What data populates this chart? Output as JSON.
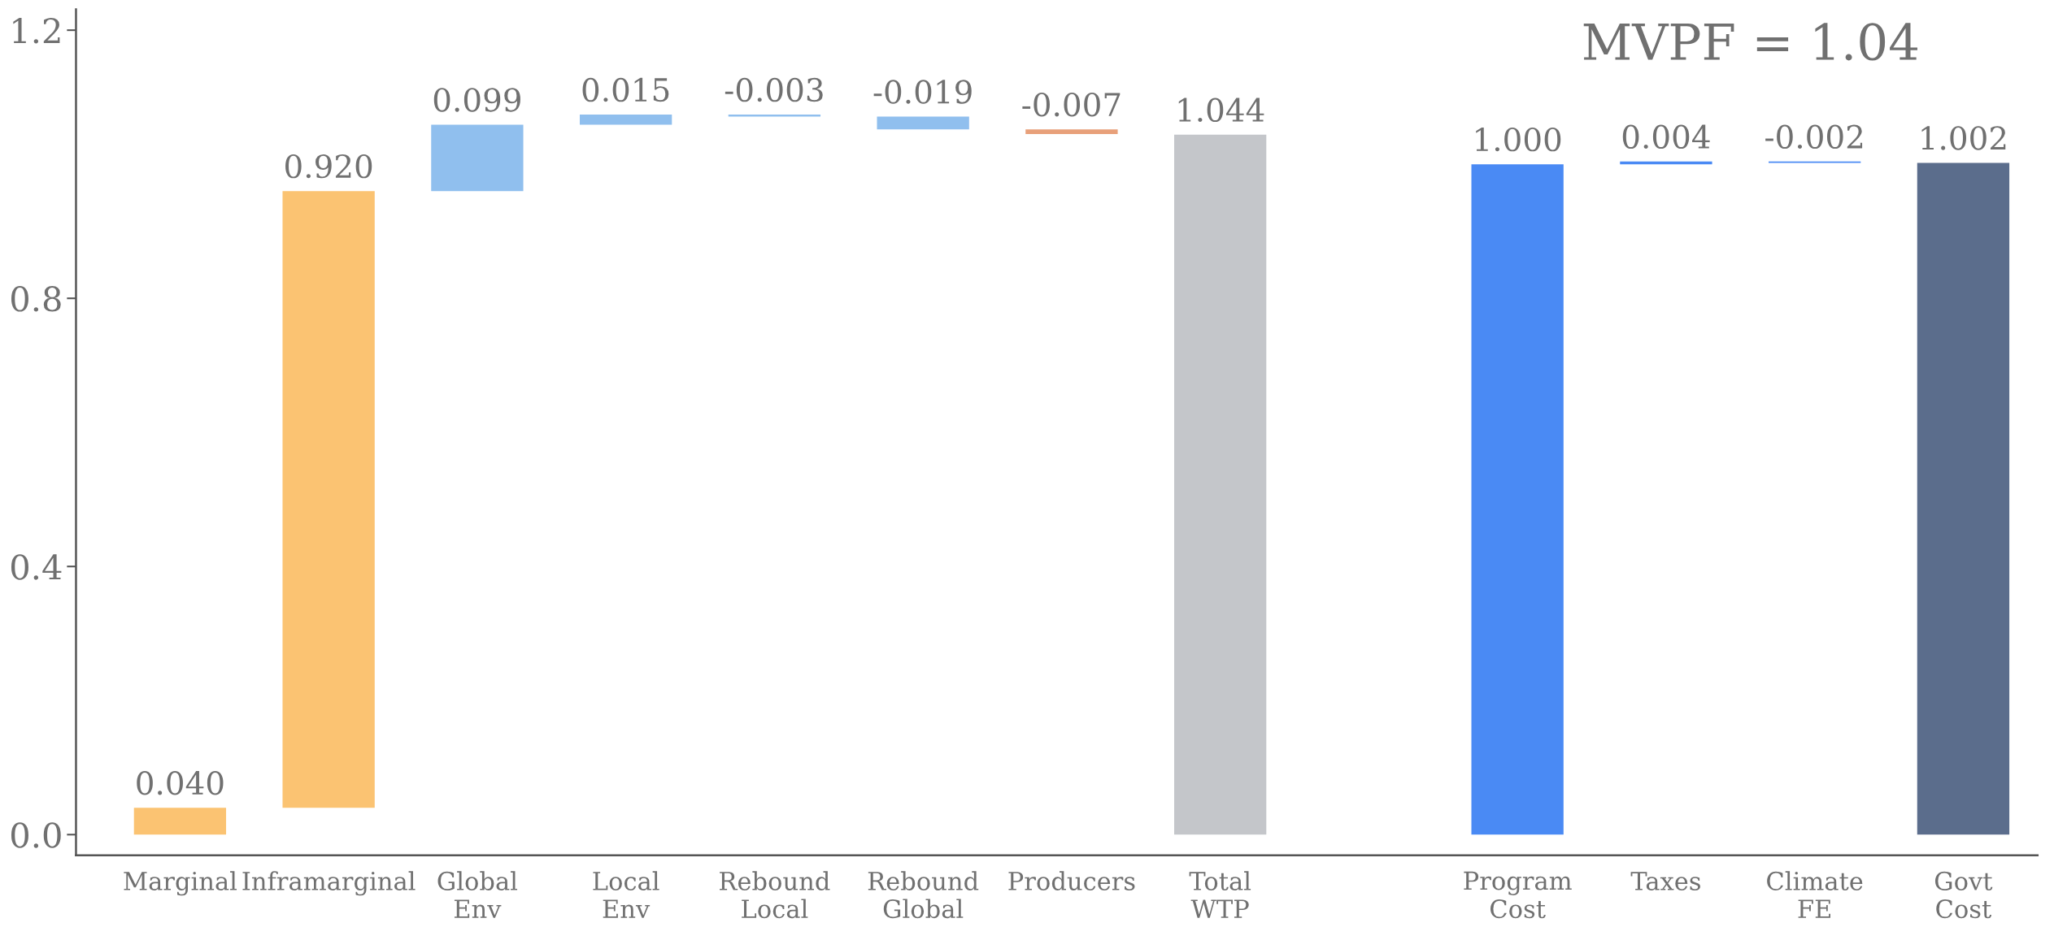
{
  "chart_data": {
    "type": "bar",
    "categories": [
      "Marginal",
      "Inframarginal",
      "Global\nEnv",
      "Local\nEnv",
      "Rebound\nLocal",
      "Rebound\nGlobal",
      "Producers",
      "Total\nWTP",
      null,
      "Program\nCost",
      "Taxes",
      "Climate\nFE",
      "Govt\nCost"
    ],
    "values": [
      0.04,
      0.92,
      0.099,
      0.015,
      -0.003,
      -0.019,
      -0.007,
      1.044,
      null,
      1.0,
      0.004,
      -0.002,
      1.002
    ],
    "base": [
      0,
      0.04,
      0.96,
      1.059,
      1.074,
      1.071,
      1.052,
      0,
      null,
      0,
      1.0,
      1.004,
      0
    ],
    "colors": [
      "#fbc372",
      "#fbc372",
      "#90bfee",
      "#90bfee",
      "#90bfee",
      "#90bfee",
      "#e8a07a",
      "#c4c6ca",
      null,
      "#4a8af4",
      "#4a8af4",
      "#4a8af4",
      "#5b6d8c"
    ],
    "value_labels": [
      "0.040",
      "0.920",
      "0.099",
      "0.015",
      "-0.003",
      "-0.019",
      "-0.007",
      "1.044",
      null,
      "1.000",
      "0.004",
      "-0.002",
      "1.002"
    ],
    "ylim": [
      -0.031,
      1.231
    ],
    "yticks": [
      {
        "value": 0,
        "label": "0.0"
      },
      {
        "value": 0.4,
        "label": "0.4"
      },
      {
        "value": 0.8,
        "label": "0.8"
      },
      {
        "value": 1.2,
        "label": "1.2"
      }
    ],
    "annotations": [
      "MVPF = 1.04"
    ],
    "grid": false
  }
}
